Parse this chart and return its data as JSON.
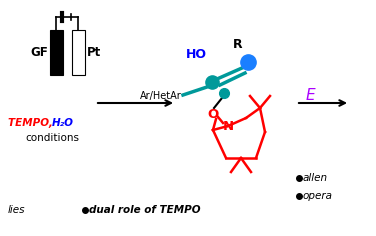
{
  "bg_color": "#ffffff",
  "gf_label": "GF",
  "pt_label": "Pt",
  "tempo_red": "TEMPO, ",
  "h2o_blue": "H₂O",
  "conditions": "conditions",
  "ho_label": "HO",
  "r_label": "R",
  "arhetAr_label": "Ar/HetAr",
  "e_label": "E",
  "e_color": "#aa00ff",
  "red_color": "#ff0000",
  "blue_color": "#0000ff",
  "teal_color": "#00999a",
  "bright_blue": "#1a7fff",
  "black": "#000000",
  "bullet1": "allen",
  "bullet2": "opera",
  "dual_tempo": "dual role of TEMPO",
  "lies": "lies",
  "fig_w": 3.76,
  "fig_h": 2.36,
  "dpi": 100
}
